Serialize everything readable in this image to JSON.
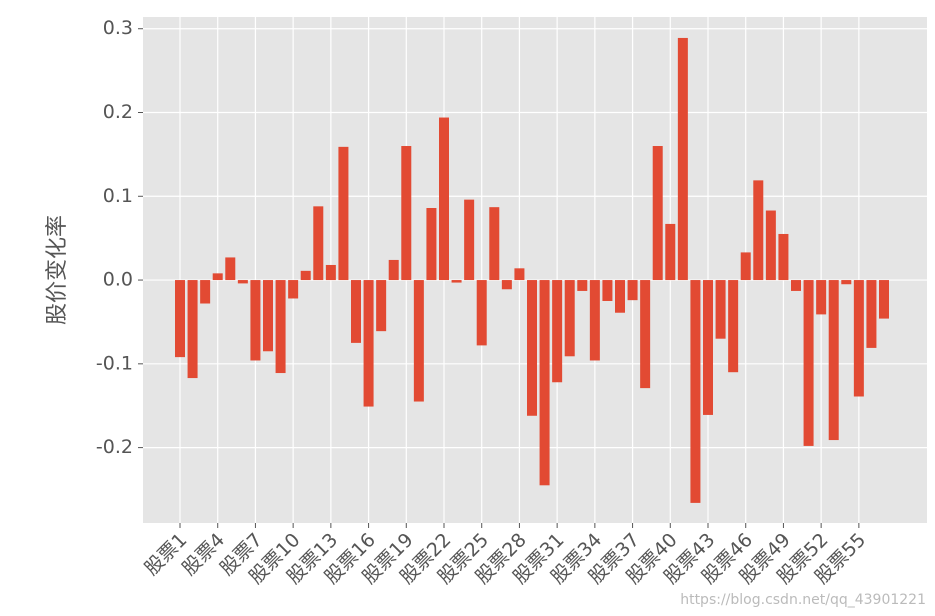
{
  "chart_data": {
    "type": "bar",
    "y_label": "股价变化率",
    "categories": [
      "股票1",
      null,
      null,
      "股票4",
      null,
      null,
      "股票7",
      null,
      null,
      "股票10",
      null,
      null,
      "股票13",
      null,
      null,
      "股票16",
      null,
      null,
      "股票19",
      null,
      null,
      "股票22",
      null,
      null,
      "股票25",
      null,
      null,
      "股票28",
      null,
      null,
      "股票31",
      null,
      null,
      "股票34",
      null,
      null,
      "股票37",
      null,
      null,
      "股票40",
      null,
      null,
      "股票43",
      null,
      null,
      "股票46",
      null,
      null,
      "股票49",
      null,
      null,
      "股票52",
      null,
      null,
      "股票55",
      null,
      null
    ],
    "values": [
      -0.092,
      -0.117,
      -0.028,
      0.008,
      0.027,
      -0.004,
      -0.096,
      -0.085,
      -0.111,
      -0.022,
      0.011,
      0.088,
      0.018,
      0.159,
      -0.075,
      -0.151,
      -0.061,
      0.024,
      0.16,
      -0.145,
      0.086,
      0.194,
      -0.003,
      0.096,
      -0.078,
      0.087,
      -0.011,
      0.014,
      -0.162,
      -0.245,
      -0.122,
      -0.091,
      -0.013,
      -0.096,
      -0.025,
      -0.039,
      -0.024,
      -0.129,
      0.16,
      0.067,
      0.289,
      -0.266,
      -0.161,
      -0.07,
      -0.11,
      0.033,
      0.119,
      0.083,
      0.055,
      -0.013,
      -0.198,
      -0.041,
      -0.191,
      -0.005,
      -0.139,
      -0.081,
      -0.046
    ],
    "color": "#e24a33",
    "ylim": [
      -0.29,
      0.314
    ],
    "yticks": [
      -0.2,
      -0.1,
      {
        "value": 0,
        "label": "0.0"
      },
      0.1,
      0.2,
      0.3
    ],
    "grid": true,
    "watermark": "https://blog.csdn.net/qq_43901221"
  }
}
